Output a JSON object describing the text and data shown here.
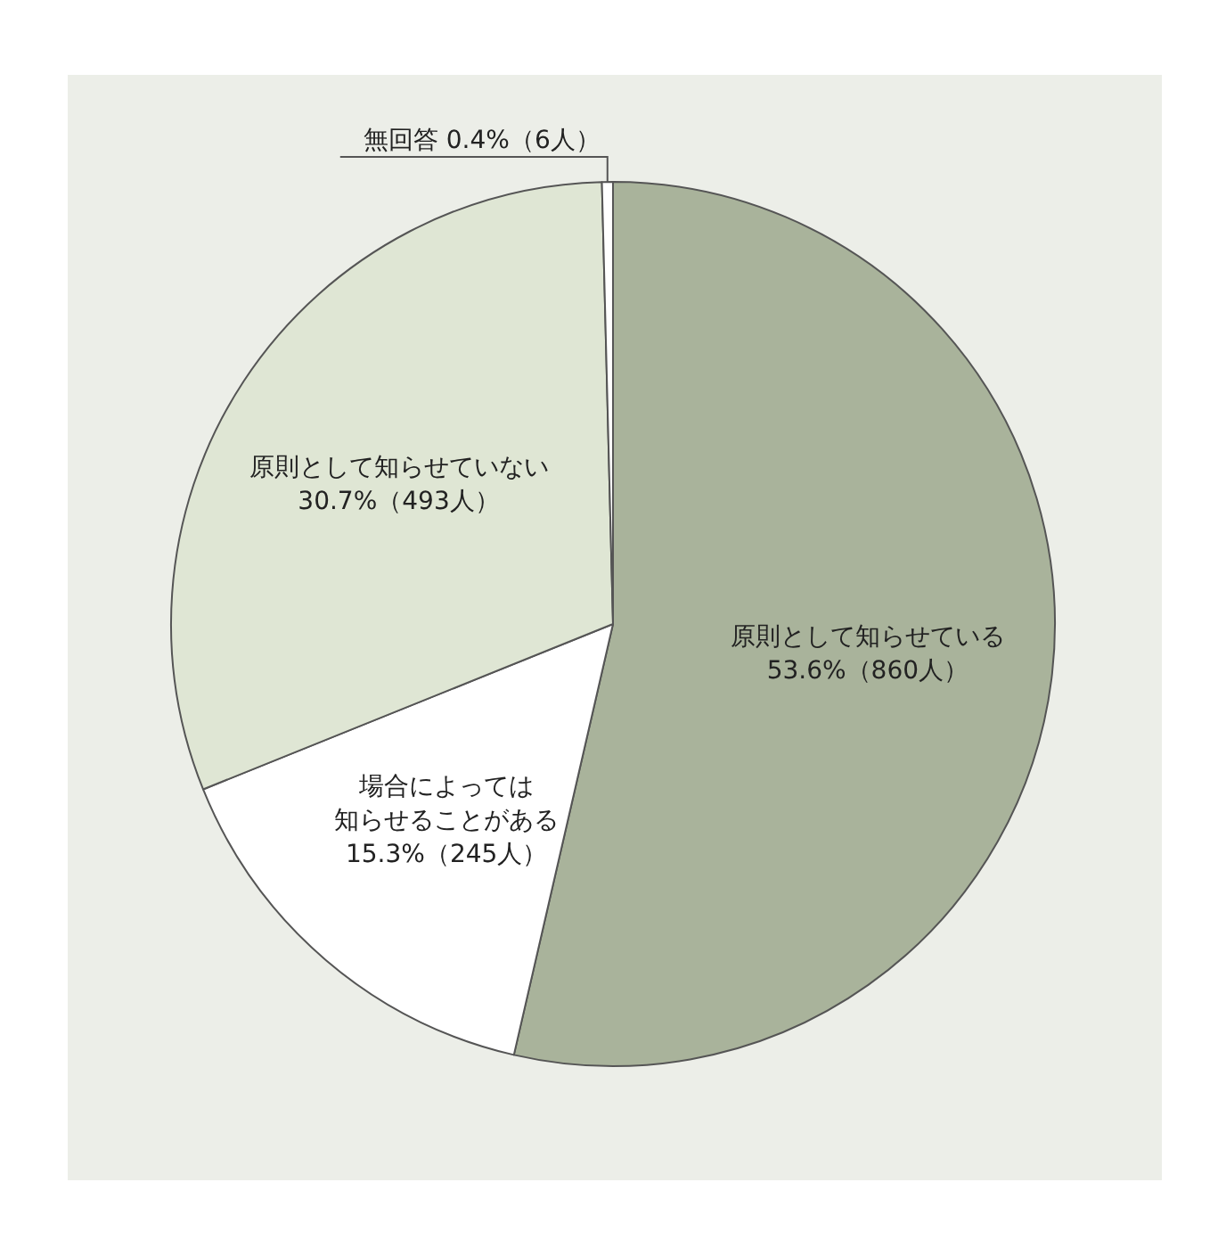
{
  "chart_data": {
    "type": "pie",
    "categories": [
      "原則として知らせている",
      "場合によっては知らせることがある",
      "原則として知らせていない",
      "無回答"
    ],
    "values": [
      53.6,
      15.3,
      30.7,
      0.4
    ],
    "colors": [
      "#a9b39b",
      "#ffffff",
      "#dfe6d4",
      "#ffffff"
    ],
    "value_labels": [
      "53.6%（860人）",
      "15.3%（245人）",
      "30.7%（493人）",
      "0.4%（6人）"
    ]
  }
}
